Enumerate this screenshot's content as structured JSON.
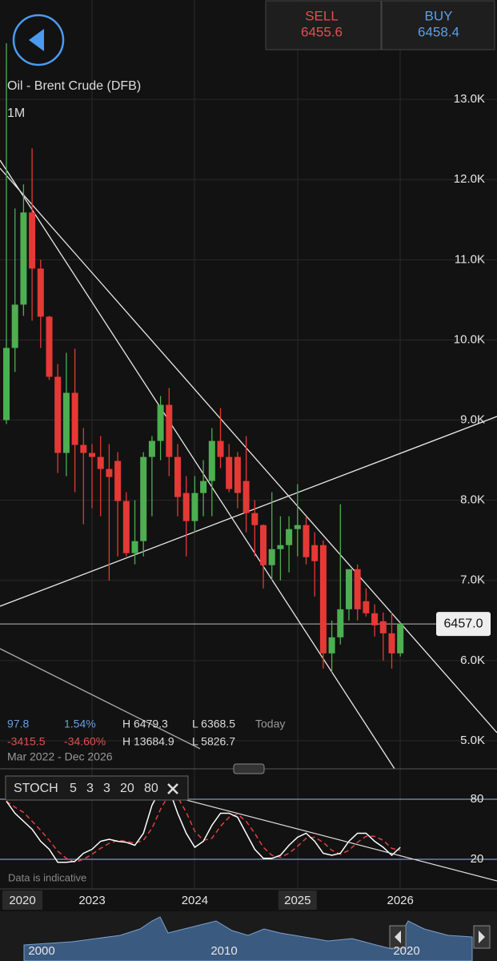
{
  "header": {
    "sell": {
      "label": "SELL",
      "price": "6455.6"
    },
    "buy": {
      "label": "BUY",
      "price": "6458.4"
    }
  },
  "chart": {
    "instrument": "Oil - Brent Crude (DFB)",
    "timeframe": "1M",
    "ylim": [
      4650,
      14240
    ],
    "yticks": [
      {
        "value": 5000,
        "label": "5.0K"
      },
      {
        "value": 6000,
        "label": "6.0K"
      },
      {
        "value": 7000,
        "label": "7.0K"
      },
      {
        "value": 8000,
        "label": "8.0K"
      },
      {
        "value": 9000,
        "label": "9.0K"
      },
      {
        "value": 10000,
        "label": "10.0K"
      },
      {
        "value": 11000,
        "label": "11.0K"
      },
      {
        "value": 12000,
        "label": "12.0K"
      },
      {
        "value": 13000,
        "label": "13.0K"
      }
    ],
    "current_price": {
      "value": 6457,
      "label": "6457.0"
    },
    "candles": [
      [
        9000,
        13700,
        8950,
        9900
      ],
      [
        9900,
        11640,
        9600,
        10440
      ],
      [
        10440,
        11940,
        10300,
        11590
      ],
      [
        11590,
        12390,
        10240,
        10890
      ],
      [
        10890,
        11000,
        9900,
        10290
      ],
      [
        10290,
        10300,
        9500,
        9540
      ],
      [
        9540,
        9700,
        8340,
        8590
      ],
      [
        8590,
        9840,
        8300,
        9340
      ],
      [
        9340,
        9890,
        8100,
        8690
      ],
      [
        8690,
        8900,
        7700,
        8590
      ],
      [
        8590,
        8700,
        7900,
        8540
      ],
      [
        8540,
        8800,
        7800,
        8390
      ],
      [
        8390,
        8700,
        7000,
        8290
      ],
      [
        8490,
        8600,
        7300,
        7990
      ],
      [
        7990,
        8100,
        7300,
        7340
      ],
      [
        7340,
        8000,
        7200,
        7490
      ],
      [
        7490,
        8600,
        7300,
        8540
      ],
      [
        8540,
        8800,
        7800,
        8740
      ],
      [
        8740,
        9300,
        8500,
        9190
      ],
      [
        9190,
        9400,
        8300,
        8540
      ],
      [
        8540,
        8700,
        7800,
        8040
      ],
      [
        8090,
        8300,
        7300,
        7740
      ],
      [
        7740,
        8300,
        7600,
        8090
      ],
      [
        8090,
        8500,
        7800,
        8240
      ],
      [
        8240,
        8900,
        7800,
        8740
      ],
      [
        8740,
        9150,
        8400,
        8540
      ],
      [
        8540,
        8700,
        8100,
        8140
      ],
      [
        8540,
        8600,
        7900,
        8090
      ],
      [
        8240,
        8800,
        7600,
        7840
      ],
      [
        7840,
        8000,
        7300,
        7690
      ],
      [
        7690,
        7700,
        6900,
        7190
      ],
      [
        7190,
        8100,
        7000,
        7390
      ],
      [
        7390,
        7800,
        7000,
        7440
      ],
      [
        7440,
        7800,
        7100,
        7640
      ],
      [
        7640,
        8200,
        7300,
        7690
      ],
      [
        7690,
        7800,
        7200,
        7290
      ],
      [
        7440,
        7600,
        6800,
        7240
      ],
      [
        7440,
        7500,
        5900,
        6090
      ],
      [
        6090,
        6500,
        5850,
        6290
      ],
      [
        6290,
        7950,
        6200,
        6640
      ],
      [
        6640,
        7100,
        6500,
        7140
      ],
      [
        7140,
        7200,
        6500,
        6640
      ],
      [
        6740,
        6900,
        6550,
        6590
      ],
      [
        6590,
        6700,
        6300,
        6440
      ],
      [
        6490,
        6600,
        6000,
        6340
      ],
      [
        6340,
        6600,
        5900,
        6090
      ],
      [
        6090,
        6479,
        6050,
        6457
      ]
    ],
    "x_labels": [
      null,
      null,
      null,
      null,
      null,
      null,
      null,
      null,
      null,
      null,
      "2023",
      null,
      null,
      null,
      null,
      null,
      null,
      null,
      null,
      null,
      null,
      null,
      "2024",
      null,
      null,
      null,
      null,
      null,
      null,
      null,
      null,
      null,
      null,
      null,
      "2025",
      null,
      null,
      null,
      null,
      null,
      null,
      null,
      null,
      null,
      null,
      null,
      "2026"
    ],
    "x_start_label": "2020",
    "stats": {
      "row1": [
        "97.8",
        "1.54%",
        "H 6479.3",
        "L 6368.5",
        "Today"
      ],
      "row2": [
        "-3415.5",
        "-34.60%",
        "H 13684.9",
        "L 5826.7"
      ],
      "range": "Mar 2022 - Dec 2026"
    }
  },
  "stoch": {
    "name": "STOCH",
    "params": [
      "5",
      "3",
      "3",
      "20",
      "80"
    ],
    "ylim": [
      0,
      100
    ],
    "yticks": [
      20,
      80
    ],
    "k": [
      78,
      66,
      58,
      50,
      38,
      30,
      17,
      17,
      18,
      26,
      30,
      38,
      40,
      38,
      37,
      34,
      46,
      74,
      90,
      90,
      66,
      46,
      32,
      38,
      54,
      66,
      66,
      62,
      46,
      30,
      21,
      21,
      24,
      34,
      42,
      46,
      38,
      26,
      24,
      26,
      38,
      46,
      46,
      38,
      32,
      24,
      32
    ],
    "d": [
      78,
      72,
      67,
      58,
      49,
      39,
      28,
      21,
      17,
      20,
      25,
      31,
      36,
      39,
      38,
      36,
      39,
      51,
      70,
      85,
      82,
      67,
      48,
      39,
      41,
      53,
      62,
      65,
      58,
      46,
      32,
      24,
      22,
      26,
      33,
      41,
      42,
      37,
      29,
      25,
      29,
      37,
      43,
      43,
      39,
      31,
      29
    ],
    "note": "Data is indicative"
  },
  "navigator": {
    "labels": [
      "2000",
      "2010",
      "2020"
    ]
  }
}
